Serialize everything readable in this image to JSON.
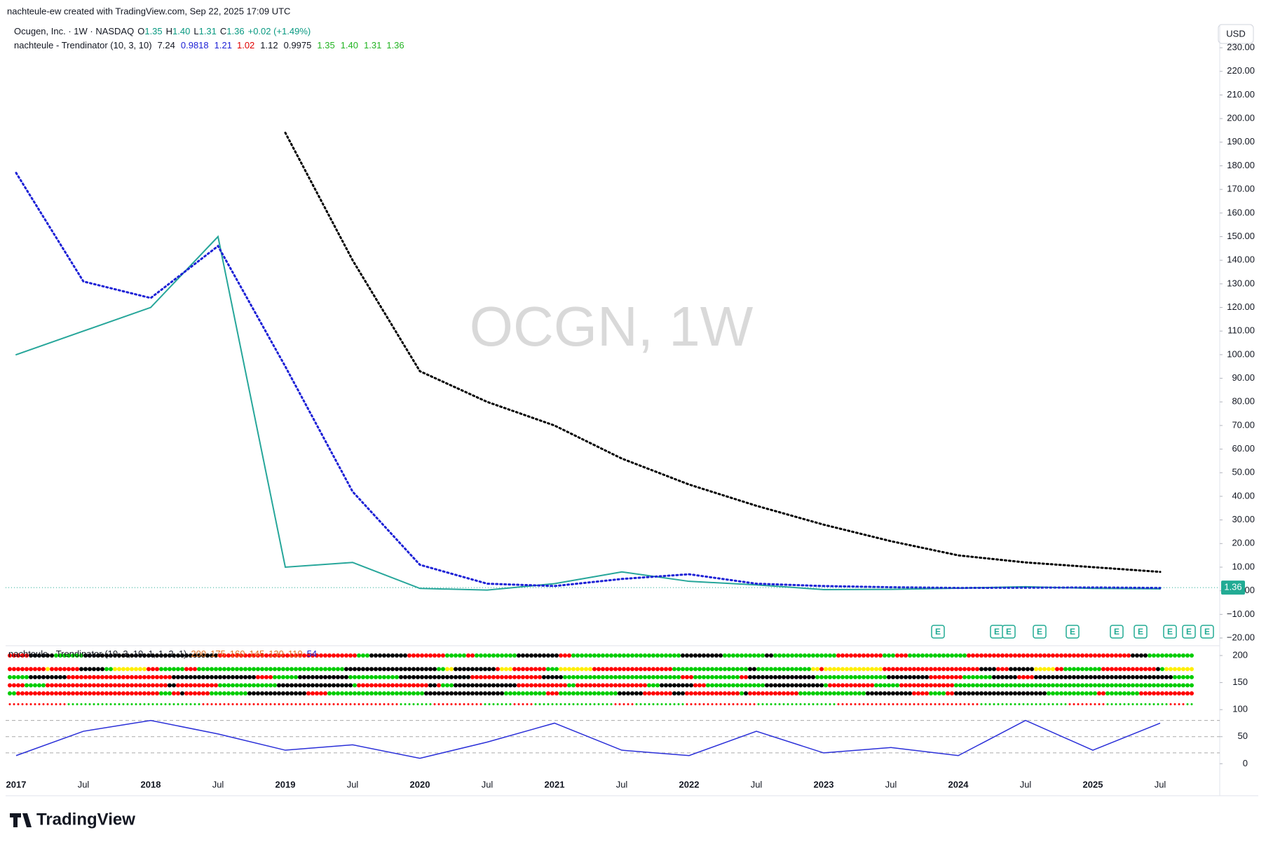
{
  "header": {
    "credit": "nachteule-ew created with TradingView.com, Sep 22, 2025 17:09 UTC",
    "symbol": "Ocugen, Inc. · 1W · NASDAQ",
    "ohlc": [
      {
        "key": "O",
        "value": "1.35"
      },
      {
        "key": "H",
        "value": "1.40"
      },
      {
        "key": "L",
        "value": "1.31"
      },
      {
        "key": "C",
        "value": "1.36"
      }
    ],
    "change": "+0.02 (+1.49%)",
    "indicator": "nachteule - Trendinator (10, 3, 10)",
    "indicator_values": [
      "7.24",
      "0.9818",
      "1.21",
      "1.02",
      "1.12",
      "0.9975",
      "1.35",
      "1.40",
      "1.31",
      "1.36"
    ],
    "currency": "USD",
    "watermark": "OCGN, 1W",
    "last_price": "1.36",
    "brand": "TradingView"
  },
  "chart_data": [
    {
      "type": "line",
      "categories": [
        "2017",
        "Jul",
        "2018",
        "Jul",
        "2019",
        "Jul",
        "2020",
        "Jul",
        "2021",
        "Jul",
        "2022",
        "Jul",
        "2023",
        "Jul",
        "2024",
        "Jul",
        "2025",
        "Jul"
      ],
      "series": [
        {
          "color": "#26a69a",
          "values": [
            100,
            110,
            120,
            150,
            10,
            12,
            1,
            0.3,
            3,
            8,
            4,
            2.5,
            0.5,
            0.6,
            1.1,
            1.7,
            1,
            0.8
          ]
        },
        {
          "color": "#1e22d6",
          "values": [
            177,
            131,
            124,
            146,
            95,
            42,
            11,
            3,
            2,
            5,
            7,
            3,
            2,
            1.5,
            1.2,
            1.3,
            1.4,
            1.2
          ]
        },
        {
          "color": "#000000",
          "values": [
            null,
            null,
            null,
            null,
            194,
            140,
            93,
            80,
            70,
            56,
            45,
            36,
            28,
            21,
            15,
            12,
            10,
            8
          ]
        }
      ],
      "ylim": [
        -20,
        233
      ],
      "yticks": [
        {
          "value": -20,
          "label": "−20.00"
        },
        {
          "value": -10,
          "label": "−10.00"
        },
        {
          "value": 0,
          "label": "0.00"
        },
        {
          "value": 10,
          "label": "10.00"
        },
        {
          "value": 20,
          "label": "20.00"
        },
        {
          "value": 30,
          "label": "30.00"
        },
        {
          "value": 40,
          "label": "40.00"
        },
        {
          "value": 50,
          "label": "50.00"
        },
        {
          "value": 60,
          "label": "60.00"
        },
        {
          "value": 70,
          "label": "70.00"
        },
        {
          "value": 80,
          "label": "80.00"
        },
        {
          "value": 90,
          "label": "90.00"
        },
        {
          "value": 100,
          "label": "100.00"
        },
        {
          "value": 110,
          "label": "110.00"
        },
        {
          "value": 120,
          "label": "120.00"
        },
        {
          "value": 130,
          "label": "130.00"
        },
        {
          "value": 140,
          "label": "140.00"
        },
        {
          "value": 150,
          "label": "150.00"
        },
        {
          "value": 160,
          "label": "160.00"
        },
        {
          "value": 170,
          "label": "170.00"
        },
        {
          "value": 180,
          "label": "180.00"
        },
        {
          "value": 190,
          "label": "190.00"
        },
        {
          "value": 200,
          "label": "200.00"
        },
        {
          "value": 210,
          "label": "210.00"
        },
        {
          "value": 220,
          "label": "220.00"
        },
        {
          "value": 230,
          "label": "230.00"
        }
      ],
      "last_value": 1.36
    },
    {
      "type": "line",
      "title": "nachteule - Trendinator (10, 3, 10, 1, 1, 2, 1)",
      "legend_values": [
        200,
        175,
        160,
        145,
        130,
        110,
        54
      ],
      "series": [
        {
          "color": "#2a2fd8",
          "values": [
            15,
            60,
            80,
            55,
            25,
            35,
            10,
            40,
            75,
            25,
            15,
            60,
            20,
            30,
            15,
            80,
            25,
            75
          ]
        }
      ],
      "ylim": [
        -19,
        213
      ],
      "yticks": [
        0,
        50,
        100,
        150,
        200
      ],
      "reference_lines": [
        20,
        50,
        80
      ]
    }
  ]
}
